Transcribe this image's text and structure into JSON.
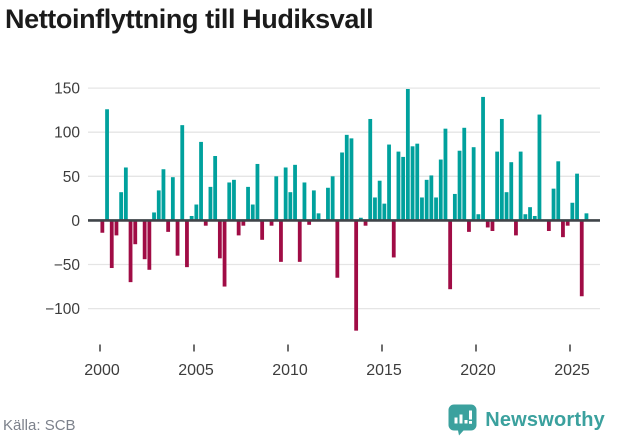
{
  "title": "Nettoinflyttning till Hudiksvall",
  "source": "Källa: SCB",
  "brand": {
    "name": "Newsworthy"
  },
  "colors": {
    "positive": "#00a19d",
    "negative": "#a00c45",
    "grid": "#e5e5e5",
    "zero_line": "#3f4449",
    "axis_text": "#3d3d3d",
    "tick_mark": "#4a4a4a",
    "title_text": "#1b1b1b",
    "source_text": "#7c818b",
    "brand_teal": "#3ba19e"
  },
  "chart_data": {
    "type": "bar",
    "title": "Nettoinflyttning till Hudiksvall",
    "frequency": "quarterly",
    "start": "2000Q1",
    "end": "2025Q4",
    "x_tick_labels": [
      "2000",
      "2005",
      "2010",
      "2015",
      "2020",
      "2025"
    ],
    "y_tick_values": [
      150,
      100,
      50,
      0,
      -50,
      -100
    ],
    "ylim": [
      -135,
      160
    ],
    "grid": true,
    "legend": false,
    "positive_color": "#00a19d",
    "negative_color": "#a00c45",
    "series": [
      {
        "name": "Nettoinflyttning",
        "values": [
          -14,
          126,
          -54,
          -17,
          32,
          60,
          -70,
          -27,
          0,
          -44,
          -56,
          9,
          34,
          58,
          -13,
          49,
          -40,
          108,
          -53,
          5,
          18,
          89,
          -6,
          38,
          73,
          -43,
          -75,
          43,
          46,
          -17,
          -6,
          38,
          18,
          64,
          -22,
          0,
          -6,
          50,
          -47,
          60,
          32,
          63,
          -47,
          43,
          -5,
          34,
          8,
          0,
          37,
          50,
          -65,
          77,
          97,
          93,
          -125,
          3,
          -6,
          115,
          26,
          45,
          19,
          86,
          -42,
          78,
          72,
          149,
          84,
          87,
          26,
          46,
          51,
          26,
          69,
          104,
          -78,
          30,
          79,
          105,
          -13,
          83,
          7,
          140,
          -8,
          -12,
          78,
          115,
          32,
          66,
          -17,
          78,
          7,
          15,
          5,
          120,
          0,
          -12,
          36,
          67,
          -19,
          -6,
          20,
          53,
          -86,
          8
        ]
      }
    ]
  }
}
